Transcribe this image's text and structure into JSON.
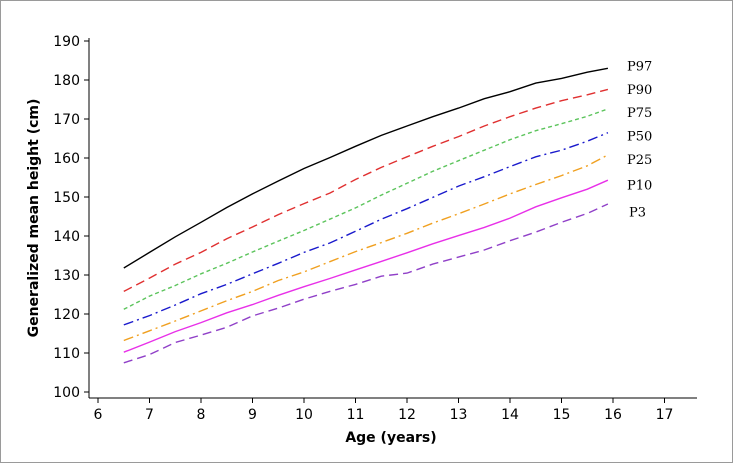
{
  "chart_data": {
    "type": "line",
    "title": "",
    "xlabel": "Age (years)",
    "ylabel": "Generalized mean height (cm)",
    "xlim": [
      6,
      17
    ],
    "ylim": [
      100,
      190
    ],
    "xticks": [
      "6",
      "7",
      "8",
      "9",
      "10",
      "11",
      "12",
      "13",
      "14",
      "15",
      "16",
      "17"
    ],
    "yticks": [
      "100",
      "110",
      "120",
      "130",
      "140",
      "150",
      "160",
      "170",
      "180",
      "190"
    ],
    "grid": false,
    "legend": "inline-right",
    "x": [
      6.5,
      7,
      7.5,
      8,
      8.5,
      9,
      9.5,
      10,
      10.5,
      11,
      11.5,
      12,
      12.5,
      13,
      13.5,
      14,
      14.5,
      15,
      15.5,
      15.9
    ],
    "series": [
      {
        "name": "P97",
        "color": "#000000",
        "dash": "solid",
        "values": [
          131.8,
          135.8,
          139.8,
          143.5,
          147.3,
          150.8,
          154.1,
          157.3,
          160.1,
          163.0,
          165.8,
          168.2,
          170.6,
          172.8,
          175.2,
          177.0,
          179.2,
          180.4,
          182.0,
          183.0
        ]
      },
      {
        "name": "P90",
        "color": "#e03030",
        "dash": "long-dash",
        "values": [
          125.8,
          129.2,
          132.8,
          135.8,
          139.3,
          142.3,
          145.5,
          148.3,
          151.0,
          154.5,
          157.6,
          160.3,
          163.0,
          165.5,
          168.2,
          170.6,
          172.8,
          174.7,
          176.2,
          177.6
        ]
      },
      {
        "name": "P75",
        "color": "#5cc45c",
        "dash": "short-dash",
        "values": [
          121.2,
          124.6,
          127.3,
          130.3,
          133.0,
          135.9,
          138.7,
          141.4,
          144.3,
          147.2,
          150.5,
          153.5,
          156.6,
          159.3,
          162.0,
          164.7,
          167.0,
          168.8,
          170.7,
          172.6
        ]
      },
      {
        "name": "P50",
        "color": "#1a1acc",
        "dash": "dash-dot",
        "values": [
          117.2,
          119.6,
          122.3,
          125.2,
          127.6,
          130.3,
          133.0,
          135.8,
          138.2,
          141.2,
          144.3,
          147.0,
          149.9,
          152.8,
          155.2,
          157.8,
          160.3,
          162.0,
          164.3,
          166.5
        ]
      },
      {
        "name": "P25",
        "color": "#f0a020",
        "dash": "dash-dot",
        "values": [
          113.2,
          115.7,
          118.2,
          120.8,
          123.4,
          125.8,
          128.6,
          130.8,
          133.4,
          136.0,
          138.3,
          140.7,
          143.3,
          145.7,
          148.2,
          150.8,
          153.2,
          155.5,
          158.0,
          160.8
        ]
      },
      {
        "name": "P10",
        "color": "#e830e8",
        "dash": "solid",
        "values": [
          110.2,
          112.8,
          115.5,
          117.8,
          120.3,
          122.4,
          124.8,
          127.0,
          129.1,
          131.3,
          133.5,
          135.7,
          138.0,
          140.1,
          142.2,
          144.6,
          147.5,
          149.8,
          152.0,
          154.3
        ]
      },
      {
        "name": "P3",
        "color": "#9040c8",
        "dash": "long-dash",
        "values": [
          107.5,
          109.6,
          112.7,
          114.6,
          116.6,
          119.5,
          121.5,
          123.8,
          125.8,
          127.6,
          129.7,
          130.5,
          132.8,
          134.6,
          136.4,
          138.8,
          141.0,
          143.5,
          145.8,
          148.2
        ]
      }
    ],
    "end_labels": [
      {
        "series": "P97",
        "text": "P97",
        "y": 183.4
      },
      {
        "series": "P90",
        "text": "P90",
        "y": 177.5
      },
      {
        "series": "P75",
        "text": "P75",
        "y": 171.5
      },
      {
        "series": "P50",
        "text": "P50",
        "y": 165.5
      },
      {
        "series": "P25",
        "text": "P25",
        "y": 159.5
      },
      {
        "series": "P10",
        "text": "P10",
        "y": 153.0
      },
      {
        "series": "P3",
        "text": "P3",
        "y": 146.0
      }
    ]
  }
}
